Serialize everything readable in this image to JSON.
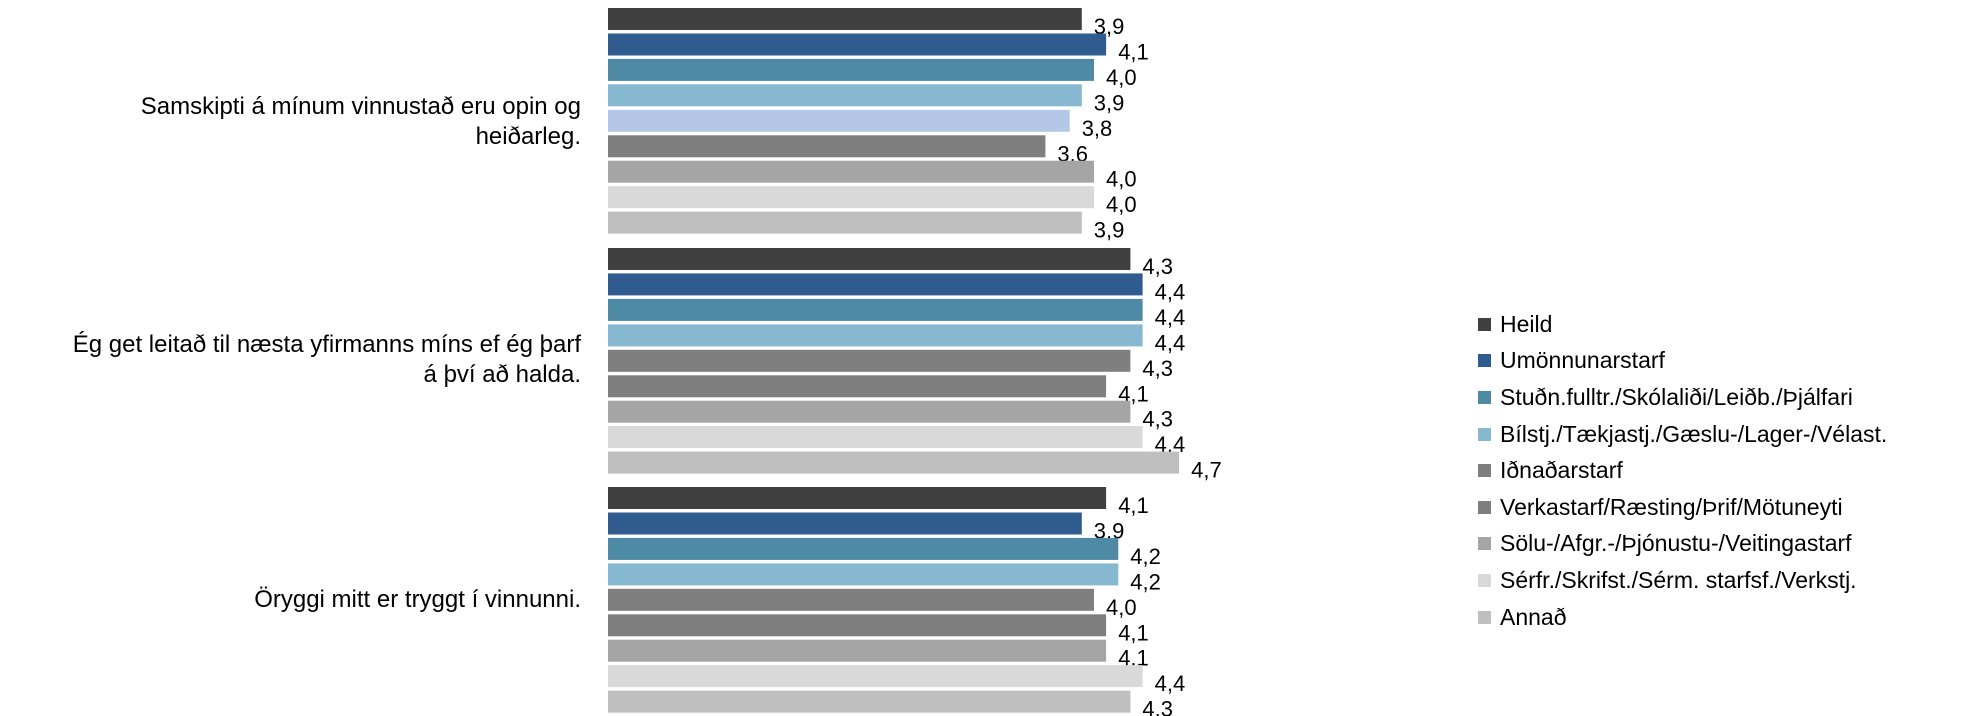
{
  "chart_data": {
    "type": "bar",
    "orientation": "horizontal",
    "categories": [
      "Samskipti á mínum vinnustað eru opin og\nheiðarleg.",
      "Ég get leitað til næsta yfirmanns míns ef ég þarf\ná því að halda.",
      "Öryggi mitt er tryggt í vinnunni."
    ],
    "series": [
      {
        "name": "Heild",
        "color": "#404040",
        "values": [
          3.9,
          4.3,
          4.1
        ],
        "labels": [
          "3,9",
          "4,3",
          "4,1"
        ]
      },
      {
        "name": "Umönnunarstarf",
        "color": "#2f5b8e",
        "values": [
          4.1,
          4.4,
          3.9
        ],
        "labels": [
          "4,1",
          "4,4",
          "3,9"
        ]
      },
      {
        "name": "Stuðn.fulltr./Skólaliði/Leiðb./Þjálfari",
        "color": "#4e89a6",
        "values": [
          4.0,
          4.4,
          4.2
        ],
        "labels": [
          "4,0",
          "4,4",
          "4,2"
        ]
      },
      {
        "name": "Bílstj./Tækjastj./Gæslu-/Lager-/Vélast.",
        "color": "#86b8d0",
        "values": [
          3.9,
          4.4,
          4.2
        ],
        "labels": [
          "3,9",
          "4,4",
          "4,2"
        ]
      },
      {
        "name": "Iðnaðarstarf",
        "color": "#7f7f7f",
        "values": [
          3.8,
          4.3,
          4.0
        ],
        "labels": [
          "3,8",
          "4,3",
          "4,0"
        ],
        "bar_colors": [
          "#b4c7e7",
          "#7f7f7f",
          "#7f7f7f"
        ]
      },
      {
        "name": "Verkastarf/Ræsting/Þrif/Mötuneyti",
        "color": "#7f7f7f",
        "values": [
          3.6,
          4.1,
          4.1
        ],
        "labels": [
          "3,6",
          "4,1",
          "4,1"
        ]
      },
      {
        "name": "Sölu-/Afgr.-/Þjónustu-/Veitingastarf",
        "color": "#a5a5a5",
        "values": [
          4.0,
          4.3,
          4.1
        ],
        "labels": [
          "4,0",
          "4,3",
          "4,1"
        ]
      },
      {
        "name": "Sérfr./Skrifst./Sérm. starfsf./Verkstj.",
        "color": "#d9d9d9",
        "values": [
          4.0,
          4.4,
          4.4
        ],
        "labels": [
          "4,0",
          "4,4",
          "4,4"
        ]
      },
      {
        "name": "Annað",
        "color": "#bfbfbf",
        "values": [
          3.9,
          4.7,
          4.3
        ],
        "labels": [
          "3,9",
          "4,7",
          "4,3"
        ]
      }
    ],
    "grid": false,
    "legend_position": "right"
  }
}
